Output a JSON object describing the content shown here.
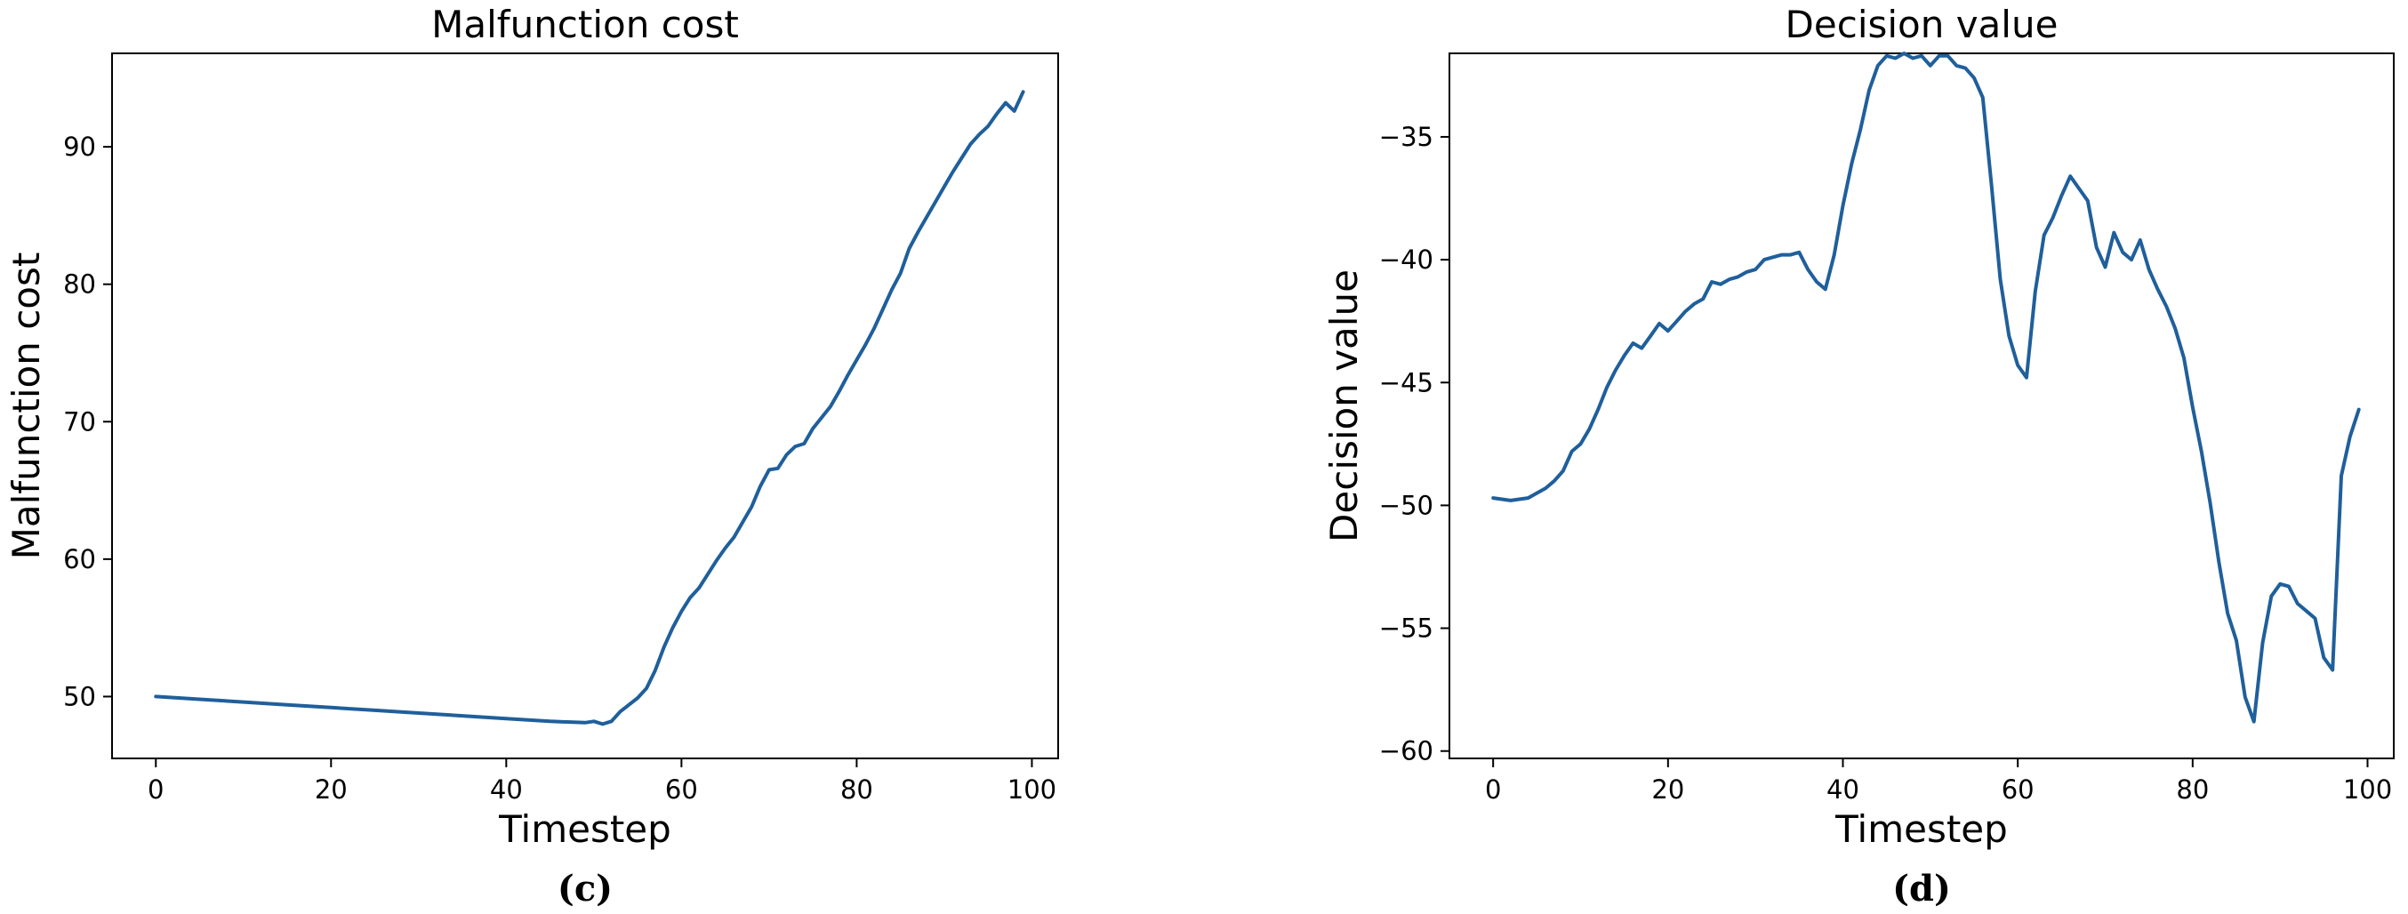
{
  "chart_data": [
    {
      "type": "line",
      "panel": "(c)",
      "title": "Malfunction cost",
      "xlabel": "Timestep",
      "ylabel": "Malfunction cost",
      "xlim": [
        -5,
        103
      ],
      "ylim": [
        45.5,
        96.8
      ],
      "xticks": [
        0,
        20,
        40,
        60,
        80,
        100
      ],
      "yticks": [
        50,
        60,
        70,
        80,
        90
      ],
      "grid": false,
      "color": "#1f5f9b",
      "series": [
        {
          "x": [
            0,
            5,
            10,
            15,
            20,
            25,
            30,
            35,
            40,
            45,
            49,
            50,
            51,
            52,
            53,
            54,
            55,
            56,
            57,
            58,
            59,
            60,
            61,
            62,
            63,
            64,
            65,
            66,
            67,
            68,
            69,
            70,
            71,
            72,
            73,
            74,
            75,
            76,
            77,
            78,
            79,
            80,
            81,
            82,
            83,
            84,
            85,
            86,
            87,
            88,
            89,
            90,
            91,
            92,
            93,
            94,
            95,
            96,
            97,
            98,
            99
          ],
          "values": [
            50.0,
            49.8,
            49.6,
            49.4,
            49.2,
            49.0,
            48.8,
            48.6,
            48.4,
            48.2,
            48.1,
            48.2,
            48.0,
            48.2,
            48.9,
            49.4,
            49.9,
            50.6,
            51.9,
            53.6,
            55.0,
            56.2,
            57.2,
            57.9,
            58.9,
            59.9,
            60.8,
            61.6,
            62.7,
            63.8,
            65.3,
            66.5,
            66.6,
            67.6,
            68.2,
            68.4,
            69.5,
            70.3,
            71.1,
            72.2,
            73.4,
            74.5,
            75.6,
            76.8,
            78.2,
            79.6,
            80.8,
            82.6,
            83.8,
            84.9,
            86.0,
            87.1,
            88.2,
            89.2,
            90.2,
            90.9,
            91.5,
            92.4,
            93.2,
            92.6,
            94.0
          ]
        }
      ]
    },
    {
      "type": "line",
      "panel": "(d)",
      "title": "Decision value",
      "xlabel": "Timestep",
      "ylabel": "Decision value",
      "xlim": [
        -5,
        103
      ],
      "ylim": [
        -60.3,
        -31.6
      ],
      "xticks": [
        0,
        20,
        40,
        60,
        80,
        100
      ],
      "yticks": [
        -35,
        -40,
        -45,
        -50,
        -55,
        -60
      ],
      "grid": false,
      "color": "#1f5f9b",
      "series": [
        {
          "x": [
            0,
            2,
            4,
            5,
            6,
            7,
            8,
            9,
            10,
            11,
            12,
            13,
            14,
            15,
            16,
            17,
            18,
            19,
            20,
            21,
            22,
            23,
            24,
            25,
            26,
            27,
            28,
            29,
            30,
            31,
            32,
            33,
            34,
            35,
            36,
            37,
            38,
            39,
            40,
            41,
            42,
            43,
            44,
            45,
            46,
            47,
            48,
            49,
            50,
            51,
            52,
            53,
            54,
            55,
            56,
            57,
            58,
            59,
            60,
            61,
            62,
            63,
            64,
            65,
            66,
            67,
            68,
            69,
            70,
            71,
            72,
            73,
            74,
            75,
            76,
            77,
            78,
            79,
            80,
            81,
            82,
            83,
            84,
            85,
            86,
            87,
            88,
            89,
            90,
            91,
            92,
            93,
            94,
            95,
            96,
            97,
            98,
            99
          ],
          "values": [
            -49.7,
            -49.8,
            -49.7,
            -49.5,
            -49.3,
            -49.0,
            -48.6,
            -47.8,
            -47.5,
            -46.9,
            -46.1,
            -45.2,
            -44.5,
            -43.9,
            -43.4,
            -43.6,
            -43.1,
            -42.6,
            -42.9,
            -42.5,
            -42.1,
            -41.8,
            -41.6,
            -40.9,
            -41.0,
            -40.8,
            -40.7,
            -40.5,
            -40.4,
            -40.0,
            -39.9,
            -39.8,
            -39.8,
            -39.7,
            -40.4,
            -40.9,
            -41.2,
            -39.8,
            -37.8,
            -36.1,
            -34.7,
            -33.1,
            -32.1,
            -31.7,
            -31.8,
            -31.6,
            -31.8,
            -31.7,
            -32.1,
            -31.7,
            -31.7,
            -32.1,
            -32.2,
            -32.6,
            -33.4,
            -37.0,
            -40.8,
            -43.1,
            -44.3,
            -44.8,
            -41.3,
            -39.0,
            -38.3,
            -37.4,
            -36.6,
            -37.1,
            -37.6,
            -39.5,
            -40.3,
            -38.9,
            -39.7,
            -40.0,
            -39.2,
            -40.4,
            -41.2,
            -41.9,
            -42.8,
            -44.0,
            -46.0,
            -47.8,
            -49.9,
            -52.3,
            -54.4,
            -55.5,
            -57.8,
            -58.8,
            -55.6,
            -53.7,
            -53.2,
            -53.3,
            -54.0,
            -54.3,
            -54.6,
            -56.2,
            -56.7,
            -48.8,
            -47.2,
            -46.1
          ]
        }
      ]
    }
  ]
}
